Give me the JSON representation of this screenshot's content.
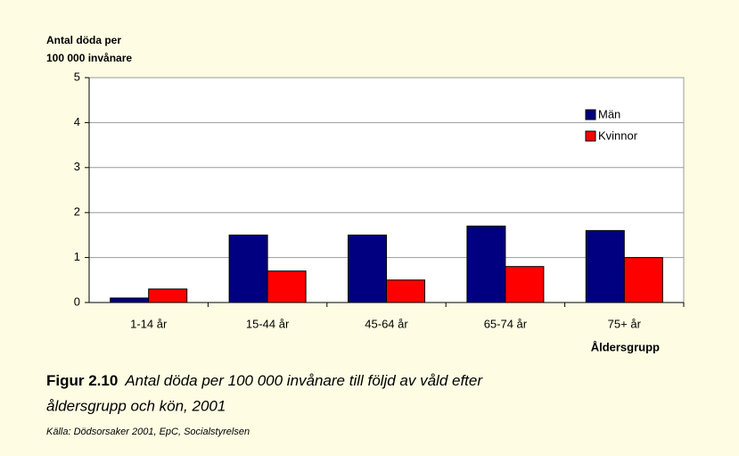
{
  "chart_data": {
    "type": "bar",
    "ylabel": [
      "Antal döda per",
      "100 000 invånare"
    ],
    "xlabel": "Åldersgrupp",
    "categories": [
      "1-14 år",
      "15-44 år",
      "45-64 år",
      "65-74 år",
      "75+ år"
    ],
    "series": [
      {
        "name": "Män",
        "color": "#000080",
        "values": [
          0.1,
          1.5,
          1.5,
          1.7,
          1.6
        ]
      },
      {
        "name": "Kvinnor",
        "color": "#ff0000",
        "values": [
          0.3,
          0.7,
          0.5,
          0.8,
          1.0
        ]
      }
    ],
    "ylim": [
      0,
      5
    ],
    "yticks": [
      0,
      1,
      2,
      3,
      4,
      5
    ],
    "grid": true,
    "legend": "top-right",
    "figure_label": "Figur 2.10",
    "caption": [
      "Antal döda per 100 000 invånare till följd av våld efter",
      "åldersgrupp och kön, 2001"
    ],
    "source": "Källa: Dödsorsaker 2001, EpC, Socialstyrelsen"
  }
}
